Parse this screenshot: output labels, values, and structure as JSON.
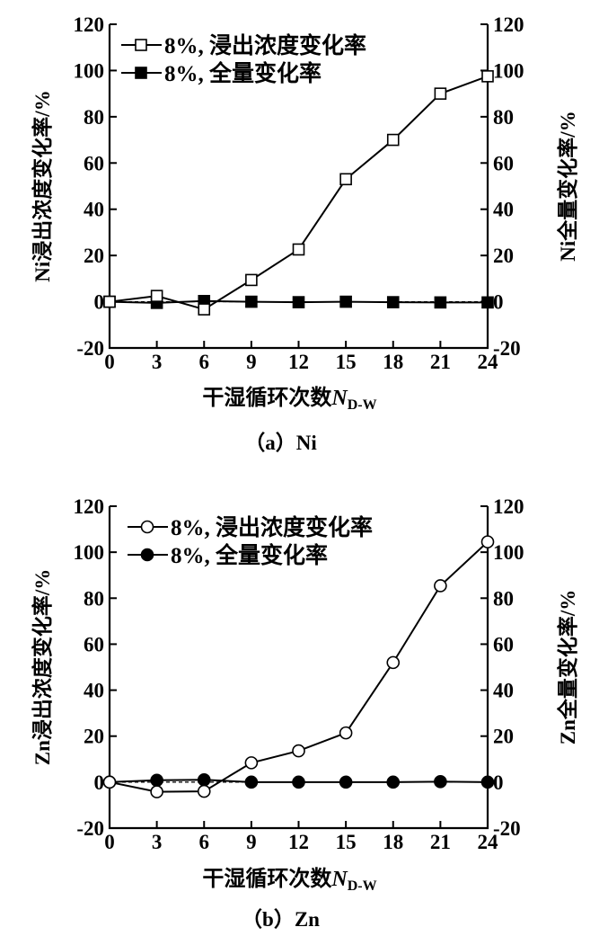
{
  "chart_data": [
    {
      "type": "line",
      "caption": "（a）Ni",
      "xlabel": "干湿循环次数",
      "xlabel_var": "N",
      "xlabel_sub": "D-W",
      "ylabel": "Ni浸出浓度变化率/%",
      "y2label": "Ni全量变化率/%",
      "x": [
        0,
        3,
        6,
        9,
        12,
        15,
        18,
        21,
        24
      ],
      "xticks": [
        "0",
        "3",
        "6",
        "9",
        "12",
        "15",
        "18",
        "21",
        "24"
      ],
      "xlim": [
        0,
        24
      ],
      "ylim": [
        -20,
        120
      ],
      "yticks": [
        "-20",
        "0",
        "20",
        "40",
        "60",
        "80",
        "100",
        "120"
      ],
      "legend_position": "top-left",
      "marker": "square",
      "series": [
        {
          "name": "8%, 浸出浓度变化率",
          "filled": false,
          "values": [
            0,
            2.5,
            -3.3,
            9.4,
            22.6,
            53,
            70,
            90,
            97.5
          ]
        },
        {
          "name": "8%, 全量变化率",
          "filled": true,
          "values": [
            0,
            -0.5,
            0.3,
            0,
            -0.2,
            0,
            -0.2,
            -0.3,
            -0.3
          ]
        }
      ]
    },
    {
      "type": "line",
      "caption": "（b）Zn",
      "xlabel": "干湿循环次数",
      "xlabel_var": "N",
      "xlabel_sub": "D-W",
      "ylabel": "Zn浸出浓度变化率/%",
      "y2label": "Zn全量变化率/%",
      "x": [
        0,
        3,
        6,
        9,
        12,
        15,
        18,
        21,
        24
      ],
      "xticks": [
        "0",
        "3",
        "6",
        "9",
        "12",
        "15",
        "18",
        "21",
        "24"
      ],
      "xlim": [
        0,
        24
      ],
      "ylim": [
        -20,
        120
      ],
      "yticks": [
        "-20",
        "0",
        "20",
        "40",
        "60",
        "80",
        "100",
        "120"
      ],
      "legend_position": "top-left",
      "marker": "circle",
      "series": [
        {
          "name": "8%, 浸出浓度变化率",
          "filled": false,
          "values": [
            0,
            -4.2,
            -4,
            8.4,
            13.6,
            21.4,
            52,
            85.4,
            104.5
          ]
        },
        {
          "name": "8%, 全量变化率",
          "filled": true,
          "values": [
            0,
            0.8,
            1,
            0,
            0,
            0,
            0,
            0.2,
            0
          ]
        }
      ]
    }
  ]
}
